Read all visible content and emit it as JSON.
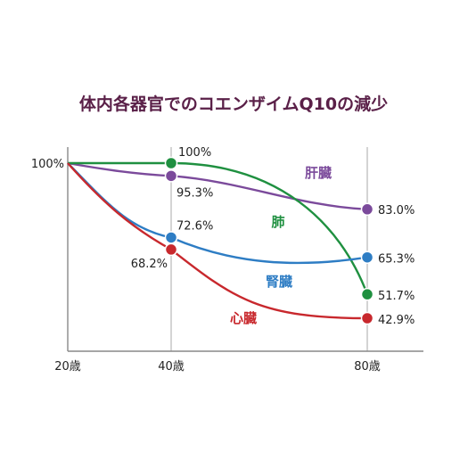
{
  "chart_data": {
    "type": "line",
    "title": "体内各器官でのコエンザイムQ10の減少",
    "xlabel": "",
    "ylabel": "",
    "x": [
      20,
      40,
      80
    ],
    "x_tick_labels": [
      "20歳",
      "40歳",
      "80歳"
    ],
    "xlim": [
      20,
      90
    ],
    "ylim": [
      35,
      100
    ],
    "y_tick_labels": [
      "100%"
    ],
    "grid": "vertical-at-x-ticks",
    "series": [
      {
        "name": "肝臓",
        "color": "#7b4a9b",
        "values": [
          100,
          95.3,
          83.0
        ],
        "labels": [
          "",
          "95.3%",
          "83.0%"
        ]
      },
      {
        "name": "肺",
        "color": "#1f9040",
        "values": [
          100,
          100,
          51.7
        ],
        "labels": [
          "",
          "100%",
          "51.7%"
        ]
      },
      {
        "name": "腎臓",
        "color": "#2e7dc4",
        "values": [
          100,
          72.6,
          65.3
        ],
        "labels": [
          "",
          "72.6%",
          "65.3%"
        ]
      },
      {
        "name": "心臓",
        "color": "#c8282d",
        "values": [
          100,
          68.2,
          42.9
        ],
        "labels": [
          "",
          "68.2%",
          "42.9%"
        ]
      }
    ]
  }
}
